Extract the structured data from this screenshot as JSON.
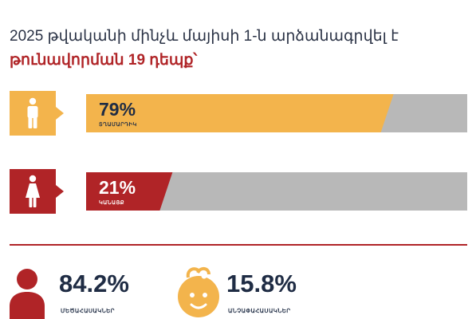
{
  "header": {
    "line1": "2025 թվականի մինչև մայիսի 1-ն արձանագրվել է",
    "line2": "թունավորման 19 դեպք՝"
  },
  "chart_data": {
    "type": "bar",
    "categories": [
      "ՏՂԱՄԱՐԴԻԿ",
      "ԿԱՆԱՅՔ"
    ],
    "values": [
      79,
      21
    ],
    "value_labels": [
      "79%",
      "21%"
    ],
    "unit": "%",
    "ylim": [
      0,
      100
    ],
    "colors": [
      "#f3b44c",
      "#b02427"
    ],
    "track_color": "#b8b8b8"
  },
  "stats": [
    {
      "value": "84.2%",
      "label": "ՄԵԾԱՀԱՍԱԿՆԵՐ",
      "icon": "adult-person-icon",
      "color": "#b02427"
    },
    {
      "value": "15.8%",
      "label": "ԱՆՉԱՓԱՀԱՍԱԿՆԵՐ",
      "icon": "baby-face-icon",
      "color": "#f3b44c"
    }
  ],
  "colors": {
    "accent_red": "#b02427",
    "accent_orange": "#f3b44c",
    "text_dark": "#1f2c44"
  }
}
